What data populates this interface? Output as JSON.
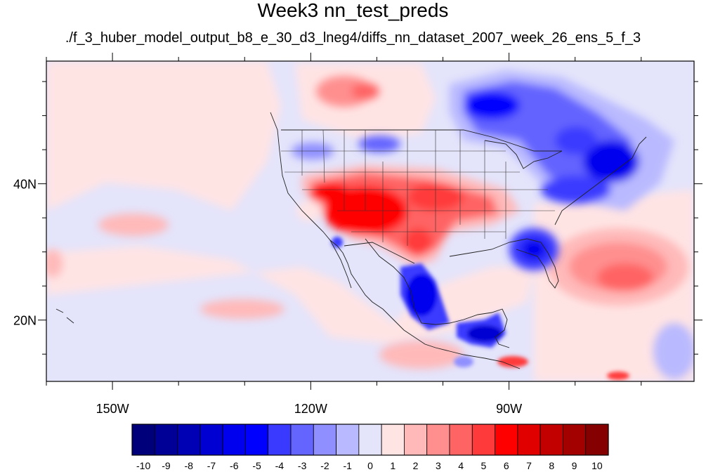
{
  "title": "Week3 nn_test_preds",
  "subtitle": "./f_3_huber_model_output_b8_e_30_d3_lneg4/diffs_nn_dataset_2007_week_26_ens_5_f_3",
  "map": {
    "lon_range": [
      -160,
      -62
    ],
    "lat_range": [
      11,
      58
    ],
    "x_ticks": [
      {
        "lon": -150,
        "label": "150W"
      },
      {
        "lon": -120,
        "label": "120W"
      },
      {
        "lon": -90,
        "label": "90W"
      }
    ],
    "y_ticks": [
      {
        "lat": 40,
        "label": "40N"
      },
      {
        "lat": 20,
        "label": "20N"
      }
    ],
    "minor_lon_step": 10,
    "minor_lat_step": 5
  },
  "colorbar": {
    "labels": [
      "-10",
      "-9",
      "-8",
      "-7",
      "-6",
      "-5",
      "-4",
      "-3",
      "-2",
      "-1",
      "0",
      "1",
      "2",
      "3",
      "4",
      "5",
      "6",
      "7",
      "8",
      "9",
      "10"
    ],
    "colors": [
      "#00007a",
      "#000096",
      "#0000b4",
      "#0000d2",
      "#0000ee",
      "#0000ff",
      "#3a3aff",
      "#6464ff",
      "#8f8fff",
      "#b9b9ff",
      "#e4e4fb",
      "#ffe4e4",
      "#ffb9b9",
      "#ff8f8f",
      "#ff6464",
      "#ff3a3a",
      "#ff0000",
      "#e00000",
      "#c20000",
      "#a30000",
      "#850000"
    ]
  }
}
